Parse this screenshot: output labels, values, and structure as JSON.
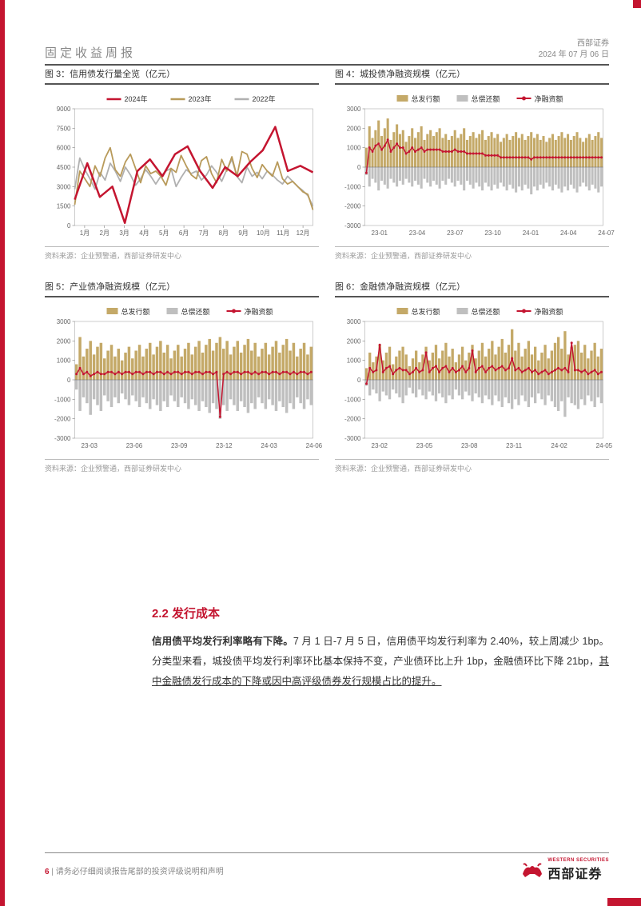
{
  "header": {
    "report_type": "固定收益周报",
    "company": "西部证券",
    "date": "2024 年 07 月 06 日"
  },
  "colors": {
    "brand_red": "#c41530",
    "series_2024": "#c41530",
    "series_2023": "#b89a5a",
    "series_2022": "#b0b0b0",
    "bar_issue": "#c4a968",
    "bar_redeem": "#bfbfbf",
    "line_net": "#c41530",
    "axis": "#666666",
    "grid": "#cccccc",
    "text": "#333333"
  },
  "charts": {
    "c3": {
      "title": "图 3：信用债发行量全览（亿元）",
      "source": "资料来源：企业预警通，西部证券研发中心",
      "legend": [
        "2024年",
        "2023年",
        "2022年"
      ],
      "xlabels": [
        "1月",
        "2月",
        "3月",
        "4月",
        "5月",
        "6月",
        "7月",
        "8月",
        "9月",
        "10月",
        "11月",
        "12月"
      ],
      "ylim": [
        0,
        9000
      ],
      "yticks": [
        0,
        1500,
        3000,
        4500,
        6000,
        7500,
        9000
      ],
      "series": {
        "y2024": [
          2000,
          4800,
          2200,
          3000,
          200,
          4200,
          5100,
          3800,
          5500,
          6100,
          4200,
          2900,
          4500,
          3800,
          4900,
          5800,
          7600,
          4200,
          4600,
          4100
        ],
        "y2023": [
          1600,
          4200,
          3600,
          3000,
          4600,
          3800,
          5200,
          6000,
          4300,
          3800,
          4900,
          5500,
          4400,
          3300,
          4600,
          4000,
          4200,
          3800,
          3100,
          4400,
          4100,
          5400,
          4600,
          3900,
          3600,
          5000,
          5300,
          4000,
          3300,
          5100,
          4200,
          5300,
          3800,
          5700,
          5500,
          4400,
          3700,
          4700,
          4200,
          3800,
          4900,
          3600,
          3200,
          3400,
          3000,
          2600,
          2400,
          1200
        ],
        "y2022": [
          2800,
          5200,
          4300,
          3600,
          2800,
          4100,
          3500,
          4800,
          4200,
          3400,
          4500,
          3900,
          3100,
          3600,
          4300,
          3800,
          3200,
          3800,
          4200,
          4400,
          3000,
          3700,
          4300,
          4000,
          4200,
          3500,
          3900,
          4600,
          4100,
          3400,
          4300,
          5100,
          3800,
          3300,
          4500,
          3800,
          4100,
          3600,
          4200,
          3900,
          3500,
          3200,
          3800,
          3400,
          3000,
          2700,
          2300,
          1500
        ]
      }
    },
    "c4": {
      "title": "图 4：城投债净融资规模（亿元）",
      "source": "资料来源：企业预警通，西部证券研发中心",
      "legend": [
        "总发行额",
        "总偿还额",
        "净融资额"
      ],
      "xlabels": [
        "23-01",
        "23-04",
        "23-07",
        "23-10",
        "24-01",
        "24-04",
        "24-07"
      ],
      "ylim": [
        -3000,
        3000
      ],
      "yticks": [
        -3000,
        -2000,
        -1000,
        0,
        1000,
        2000,
        3000
      ],
      "issue": [
        1000,
        2100,
        1500,
        1900,
        2400,
        1600,
        2000,
        2500,
        1400,
        1800,
        2200,
        1700,
        1900,
        1300,
        1600,
        2000,
        1500,
        1800,
        2100,
        1400,
        1700,
        1900,
        1600,
        1800,
        2000,
        1500,
        1700,
        1400,
        1600,
        1900,
        1500,
        1700,
        2000,
        1400,
        1600,
        1800,
        1500,
        1700,
        1900,
        1400,
        1600,
        1800,
        1500,
        1700,
        1300,
        1500,
        1700,
        1400,
        1600,
        1800,
        1500,
        1700,
        1400,
        1600,
        1800,
        1500,
        1700,
        1400,
        1600,
        1300,
        1500,
        1700,
        1400,
        1600,
        1800,
        1500,
        1700,
        1400,
        1600,
        1800,
        1500,
        1300,
        1500,
        1700,
        1400,
        1600,
        1800,
        1500
      ],
      "redeem": [
        -400,
        -1000,
        -600,
        -800,
        -1200,
        -700,
        -900,
        -1100,
        -600,
        -800,
        -1000,
        -700,
        -900,
        -600,
        -800,
        -1000,
        -700,
        -900,
        -1100,
        -600,
        -800,
        -1000,
        -700,
        -900,
        -1100,
        -700,
        -900,
        -600,
        -800,
        -1000,
        -700,
        -900,
        -1200,
        -700,
        -900,
        -1100,
        -800,
        -1000,
        -1200,
        -800,
        -1000,
        -1200,
        -900,
        -1100,
        -800,
        -1000,
        -1200,
        -900,
        -1100,
        -1300,
        -1000,
        -1200,
        -900,
        -1100,
        -1400,
        -1000,
        -1200,
        -900,
        -1100,
        -800,
        -1000,
        -1200,
        -900,
        -1100,
        -1300,
        -1000,
        -1200,
        -900,
        -1100,
        -1300,
        -1000,
        -800,
        -1000,
        -1200,
        -900,
        -1100,
        -1300,
        -1000
      ],
      "net": [
        -300,
        1000,
        800,
        1100,
        1200,
        900,
        1100,
        1400,
        800,
        1000,
        1200,
        1000,
        1000,
        700,
        800,
        1000,
        800,
        900,
        1000,
        800,
        900,
        900,
        900,
        900,
        900,
        800,
        800,
        800,
        800,
        900,
        800,
        800,
        800,
        700,
        700,
        700,
        700,
        700,
        700,
        600,
        600,
        600,
        600,
        600,
        500,
        500,
        500,
        500,
        500,
        500,
        500,
        500,
        500,
        500,
        400,
        500,
        500,
        500,
        500,
        500,
        500,
        500,
        500,
        500,
        500,
        500,
        500,
        500,
        500,
        500,
        500,
        500,
        500,
        500,
        500,
        500,
        500,
        500
      ]
    },
    "c5": {
      "title": "图 5：产业债净融资规模（亿元）",
      "source": "资料来源：企业预警通，西部证券研发中心",
      "legend": [
        "总发行额",
        "总偿还额",
        "净融资额"
      ],
      "xlabels": [
        "23-03",
        "23-06",
        "23-09",
        "23-12",
        "24-03",
        "24-06"
      ],
      "ylim": [
        -3000,
        3000
      ],
      "yticks": [
        -3000,
        -2000,
        -1000,
        0,
        1000,
        2000,
        3000
      ],
      "issue": [
        800,
        2200,
        1200,
        1600,
        2000,
        1300,
        1700,
        1900,
        1100,
        1500,
        1800,
        1200,
        1600,
        1000,
        1400,
        1700,
        1100,
        1500,
        1800,
        1200,
        1600,
        1900,
        1300,
        1700,
        2000,
        1400,
        1800,
        1100,
        1500,
        1800,
        1200,
        1600,
        1900,
        1300,
        1700,
        2000,
        1400,
        1800,
        2100,
        1500,
        1900,
        2200,
        1600,
        2000,
        1300,
        1700,
        2000,
        1400,
        1800,
        2100,
        1500,
        1900,
        1200,
        1600,
        1900,
        1300,
        1700,
        2000,
        1400,
        1800,
        2100,
        1500,
        1900,
        1200,
        1600,
        1900,
        1300,
        1700
      ],
      "redeem": [
        -500,
        -1600,
        -900,
        -1200,
        -1800,
        -1000,
        -1300,
        -1600,
        -800,
        -1100,
        -1400,
        -900,
        -1200,
        -700,
        -1000,
        -1300,
        -800,
        -1100,
        -1400,
        -900,
        -1200,
        -1500,
        -1000,
        -1300,
        -1600,
        -1100,
        -1400,
        -800,
        -1100,
        -1400,
        -900,
        -1200,
        -1500,
        -1000,
        -1300,
        -1600,
        -1100,
        -1400,
        -1700,
        -1200,
        -1500,
        -2000,
        -1300,
        -1600,
        -1000,
        -1300,
        -1600,
        -1100,
        -1400,
        -1700,
        -1200,
        -1500,
        -900,
        -1200,
        -1500,
        -1000,
        -1300,
        -1600,
        -1100,
        -1400,
        -1700,
        -1200,
        -1500,
        -900,
        -1200,
        -1500,
        -1000,
        -1300
      ],
      "net": [
        300,
        600,
        300,
        400,
        200,
        300,
        400,
        300,
        300,
        400,
        400,
        300,
        400,
        300,
        400,
        400,
        300,
        400,
        400,
        300,
        400,
        400,
        300,
        400,
        400,
        300,
        400,
        300,
        400,
        400,
        300,
        400,
        400,
        300,
        400,
        400,
        300,
        400,
        400,
        300,
        400,
        -1900,
        300,
        400,
        300,
        400,
        400,
        300,
        400,
        400,
        300,
        400,
        300,
        400,
        400,
        300,
        400,
        400,
        300,
        400,
        400,
        300,
        400,
        300,
        400,
        400,
        300,
        400
      ]
    },
    "c6": {
      "title": "图 6：金融债净融资规模（亿元）",
      "source": "资料来源：企业预警通，西部证券研发中心",
      "legend": [
        "总发行额",
        "总偿还额",
        "净融资额"
      ],
      "xlabels": [
        "23-02",
        "23-05",
        "23-08",
        "23-11",
        "24-02",
        "24-05"
      ],
      "ylim": [
        -3000,
        3000
      ],
      "yticks": [
        -3000,
        -2000,
        -1000,
        0,
        1000,
        2000,
        3000
      ],
      "issue": [
        600,
        1400,
        900,
        1200,
        1800,
        1000,
        1400,
        1700,
        800,
        1200,
        1500,
        1700,
        1300,
        700,
        1100,
        1500,
        900,
        1300,
        1700,
        1000,
        1400,
        1800,
        1100,
        1500,
        1900,
        1200,
        1600,
        900,
        1300,
        1700,
        1000,
        1400,
        1800,
        1100,
        1500,
        1900,
        1200,
        1600,
        2000,
        1300,
        1700,
        2100,
        1400,
        1800,
        2600,
        1500,
        1900,
        1200,
        1600,
        2000,
        1300,
        1700,
        1000,
        1400,
        1800,
        1100,
        1500,
        1900,
        2200,
        1600,
        2500,
        1300,
        1700,
        1800,
        2000,
        1400,
        1800,
        1100,
        1500,
        1900,
        1200,
        1600
      ],
      "redeem": [
        -300,
        -800,
        -500,
        -700,
        -1100,
        -600,
        -800,
        -1000,
        -500,
        -700,
        -900,
        -1200,
        -800,
        -400,
        -700,
        -900,
        -500,
        -800,
        -1000,
        -600,
        -800,
        -1100,
        -700,
        -900,
        -1200,
        -800,
        -1000,
        -500,
        -800,
        -1000,
        -600,
        -800,
        -1100,
        -700,
        -900,
        -1200,
        -800,
        -1000,
        -1300,
        -800,
        -1100,
        -1400,
        -900,
        -1200,
        -1500,
        -1000,
        -1300,
        -800,
        -1100,
        -1400,
        -900,
        -1200,
        -700,
        -1000,
        -1300,
        -800,
        -1100,
        -1400,
        -1600,
        -1100,
        -1900,
        -900,
        -1200,
        -1300,
        -1500,
        -1000,
        -1300,
        -800,
        -1100,
        -1400,
        -900,
        -1200
      ],
      "net": [
        -200,
        600,
        400,
        500,
        1800,
        400,
        600,
        700,
        300,
        500,
        600,
        500,
        500,
        300,
        400,
        600,
        400,
        500,
        1400,
        400,
        600,
        700,
        400,
        600,
        700,
        400,
        600,
        400,
        500,
        700,
        400,
        600,
        1500,
        400,
        600,
        700,
        400,
        600,
        700,
        500,
        600,
        700,
        500,
        600,
        1100,
        500,
        600,
        400,
        500,
        600,
        400,
        500,
        300,
        400,
        500,
        300,
        400,
        500,
        600,
        500,
        600,
        400,
        1900,
        500,
        500,
        400,
        500,
        300,
        400,
        500,
        300,
        400
      ]
    }
  },
  "section": {
    "heading": "2.2 发行成本",
    "para_bold": "信用债平均发行利率略有下降。",
    "para_rest": "7 月 1 日-7 月 5 日，信用债平均发行利率为 2.40%，较上周减少 1bp。分类型来看，城投债平均发行利率环比基本保持不变，产业债环比上升 1bp，金融债环比下降 21bp，",
    "para_underline": "其中金融债发行成本的下降或因中高评级债券发行规模占比的提升。"
  },
  "footer": {
    "page_num": "6",
    "disclaimer": "请务必仔细阅读报告尾部的投资评级说明和声明",
    "logo_cn": "西部证券",
    "logo_en": "WESTERN SECURITIES"
  }
}
